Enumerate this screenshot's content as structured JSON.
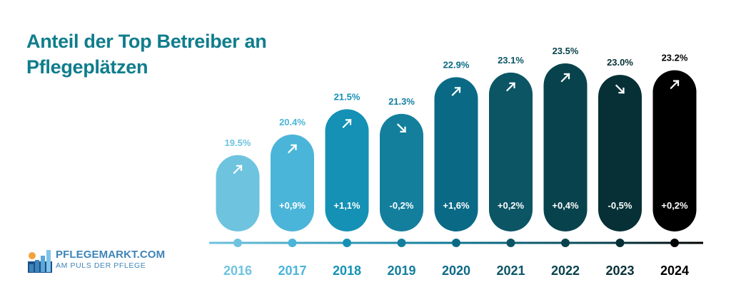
{
  "title_line1": "Anteil der Top Betreiber an",
  "title_line2": "Pflegeplätzen",
  "logo": {
    "name": "PFLEGEMARKT.COM",
    "tagline": "AM PULS DER PFLEGE"
  },
  "colors": [
    "#6ec3df",
    "#4bb5d9",
    "#1491b5",
    "#137f9d",
    "#0a6a86",
    "#0b5565",
    "#08434d",
    "#063036",
    "#000000"
  ],
  "chart_data": {
    "type": "bar",
    "title": "Anteil der Top Betreiber an Pflegeplätzen",
    "xlabel": "",
    "ylabel": "",
    "categories": [
      "2016",
      "2017",
      "2018",
      "2019",
      "2020",
      "2021",
      "2022",
      "2023",
      "2024"
    ],
    "values": [
      19.5,
      20.4,
      21.5,
      21.3,
      22.9,
      23.1,
      23.5,
      23.0,
      23.2
    ],
    "value_labels": [
      "19.5%",
      "20.4%",
      "21.5%",
      "21.3%",
      "22.9%",
      "23.1%",
      "23.5%",
      "23.0%",
      "23.2%"
    ],
    "change_labels": [
      "",
      "+0,9%",
      "+1,1%",
      "-0,2%",
      "+1,6%",
      "+0,2%",
      "+0,4%",
      "-0,5%",
      "+0,2%"
    ],
    "trend": [
      "up",
      "up",
      "up",
      "down",
      "up",
      "up",
      "up",
      "down",
      "up"
    ],
    "ylim": [
      18.5,
      23.5
    ]
  }
}
